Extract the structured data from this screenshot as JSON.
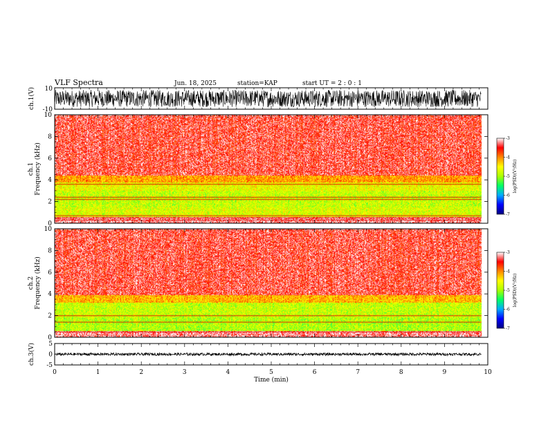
{
  "header": {
    "title": "VLF Spectra",
    "date": "Jun. 18, 2025",
    "station": "station=KAP",
    "start": "start UT =  2 : 0  : 1"
  },
  "chart_data": [
    {
      "type": "line",
      "name": "ch1-waveform",
      "ylabel": "ch.1(V)",
      "ylim": [
        -10,
        10
      ],
      "ytick_labels": [
        "10",
        "-10"
      ],
      "xlim": [
        0,
        10
      ],
      "x_data_end": 9.85,
      "amplitude_range": [
        -8,
        8
      ],
      "color": "#000000"
    },
    {
      "type": "heatmap",
      "name": "ch1-spectrogram",
      "ylabel": "ch.1\nFrequency (kHz)",
      "xlim": [
        0,
        10
      ],
      "x_data_end": 9.85,
      "ylim": [
        0,
        10
      ],
      "ytick_labels": [
        "0",
        "2",
        "4",
        "6",
        "8",
        "10"
      ],
      "colorbar": {
        "label": "log(PSD)(V²/Hz)",
        "range": [
          -7,
          -3
        ],
        "tick_labels": [
          "-3",
          "-4",
          "-5",
          "-6",
          "-7"
        ],
        "colors": [
          "#000080",
          "#0000ff",
          "#00aaff",
          "#00ff66",
          "#aaff00",
          "#ffff00",
          "#ff8800",
          "#ff0000",
          "#ffffff"
        ]
      },
      "bands": [
        {
          "freq": [
            3.0,
            3.8
          ],
          "level": -4.6
        },
        {
          "freq": [
            1.5,
            3.0
          ],
          "level": -4.8
        },
        {
          "freq": [
            0.6,
            1.5
          ],
          "level": -4.7
        },
        {
          "freq": [
            3.8,
            4.4
          ],
          "level": -4.1
        },
        {
          "freq": [
            4.4,
            10.0
          ],
          "level": -3.4
        }
      ],
      "lines_kHz": [
        2.2,
        2.4,
        0.3,
        0.5,
        0.7,
        3.6
      ]
    },
    {
      "type": "heatmap",
      "name": "ch2-spectrogram",
      "ylabel": "ch.2\nFrequency (kHz)",
      "xlim": [
        0,
        10
      ],
      "x_data_end": 9.85,
      "ylim": [
        0,
        10
      ],
      "ytick_labels": [
        "0",
        "2",
        "4",
        "6",
        "8",
        "10"
      ],
      "colorbar": {
        "label": "log(PSD)(V²/Hz)",
        "range": [
          -7,
          -3
        ],
        "tick_labels": [
          "-3",
          "-4",
          "-5",
          "-6",
          "-7"
        ],
        "colors": [
          "#000080",
          "#0000ff",
          "#00aaff",
          "#00ff66",
          "#aaff00",
          "#ffff00",
          "#ff8800",
          "#ff0000",
          "#ffffff"
        ]
      },
      "bands": [
        {
          "freq": [
            1.8,
            3.2
          ],
          "level": -4.8
        },
        {
          "freq": [
            0.6,
            1.8
          ],
          "level": -4.9
        },
        {
          "freq": [
            3.2,
            3.9
          ],
          "level": -4.2
        },
        {
          "freq": [
            3.9,
            10.0
          ],
          "level": -3.4
        }
      ],
      "lines_kHz": [
        2.0,
        1.4,
        0.5
      ]
    },
    {
      "type": "line",
      "name": "ch3-waveform",
      "ylabel": "ch.3(V)",
      "ylim": [
        -5,
        5
      ],
      "ytick_labels": [
        "5",
        "0",
        "-5"
      ],
      "xlim": [
        0,
        10
      ],
      "x_data_end": 9.85,
      "baseline": 0,
      "amplitude_range": [
        -0.6,
        0.6
      ],
      "color": "#000000"
    }
  ],
  "x_axis": {
    "label": "Time (min)",
    "tick_labels": [
      "0",
      "1",
      "2",
      "3",
      "4",
      "5",
      "6",
      "7",
      "8",
      "9",
      "10"
    ],
    "range": [
      0,
      10
    ]
  }
}
